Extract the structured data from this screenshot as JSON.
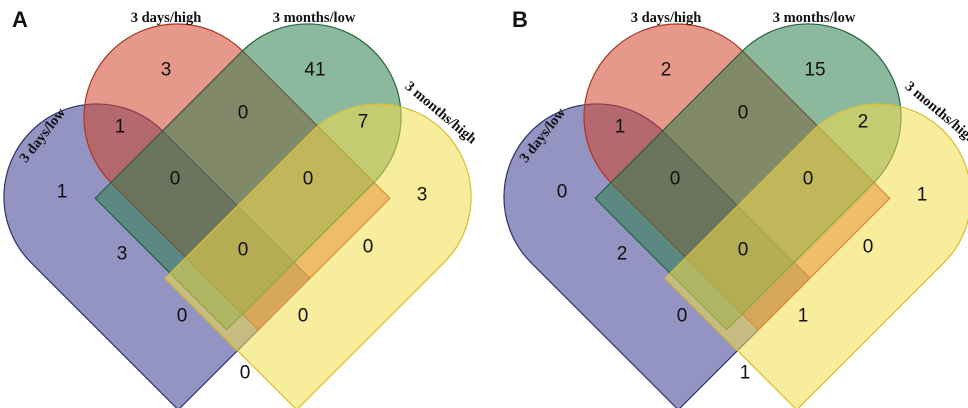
{
  "sets": [
    {
      "key": "dl",
      "label": "3 days/low",
      "color": "#3a3d8f",
      "stroke": "#2d2f73"
    },
    {
      "key": "dh",
      "label": "3 days/high",
      "color": "#d2442a",
      "stroke": "#b3321c"
    },
    {
      "key": "ml",
      "label": "3 months/low",
      "color": "#2d7e4e",
      "stroke": "#23653d"
    },
    {
      "key": "mh",
      "label": "3 months/high",
      "color": "#f2dc4c",
      "stroke": "#d9be2c"
    }
  ],
  "panels": [
    {
      "letter": "A",
      "counts": {
        "dl": "1",
        "dh": "3",
        "ml": "41",
        "mh": "3",
        "dl_dh": "1",
        "dh_ml": "0",
        "ml_mh": "7",
        "dl_mh": "0",
        "dl_ml": "3",
        "dh_mh": "0",
        "dl_dh_ml": "0",
        "dh_ml_mh": "0",
        "dl_ml_mh": "0",
        "dl_dh_mh": "0",
        "all": "0"
      }
    },
    {
      "letter": "B",
      "counts": {
        "dl": "0",
        "dh": "2",
        "ml": "15",
        "mh": "1",
        "dl_dh": "1",
        "dh_ml": "0",
        "ml_mh": "2",
        "dl_mh": "0",
        "dl_ml": "2",
        "dh_mh": "0",
        "dl_dh_ml": "0",
        "dh_ml_mh": "0",
        "dl_ml_mh": "1",
        "dl_dh_mh": "1",
        "all": "0"
      }
    }
  ]
}
